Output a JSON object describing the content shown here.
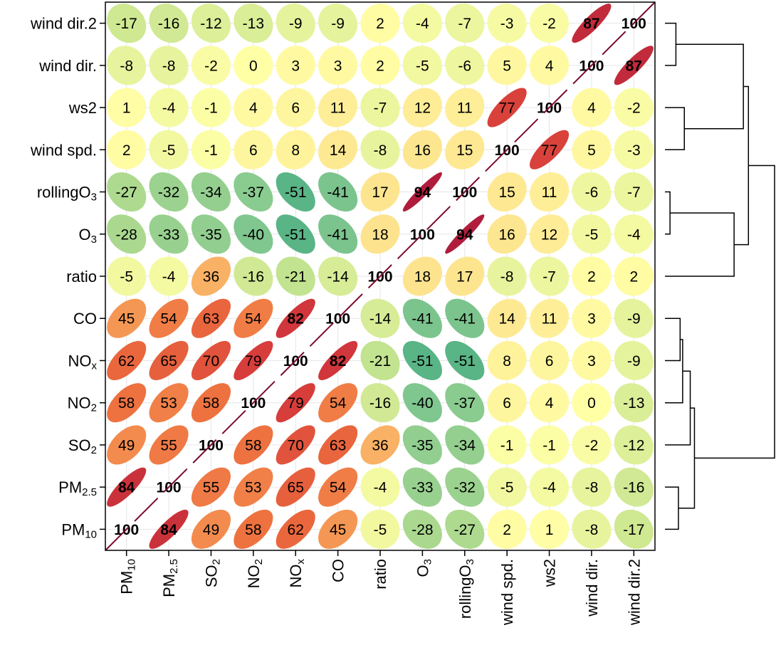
{
  "chart_data": {
    "type": "heatmap",
    "title": "",
    "xlabel": "",
    "ylabel": "",
    "variables": [
      {
        "base": "PM",
        "sub": "10"
      },
      {
        "base": "PM",
        "sub": "2.5"
      },
      {
        "base": "SO",
        "sub": "2"
      },
      {
        "base": "NO",
        "sub": "2"
      },
      {
        "base": "NO",
        "sub": "x"
      },
      {
        "base": "CO",
        "sub": ""
      },
      {
        "base": "ratio",
        "sub": ""
      },
      {
        "base": "O",
        "sub": "3"
      },
      {
        "base": "rollingO",
        "sub": "3"
      },
      {
        "base": "wind spd.",
        "sub": ""
      },
      {
        "base": "ws2",
        "sub": ""
      },
      {
        "base": "wind dir.",
        "sub": ""
      },
      {
        "base": "wind dir.2",
        "sub": ""
      }
    ],
    "matrix": [
      [
        100,
        84,
        49,
        58,
        62,
        45,
        -5,
        -28,
        -27,
        2,
        1,
        -8,
        -17
      ],
      [
        84,
        100,
        55,
        53,
        65,
        54,
        -4,
        -33,
        -32,
        -5,
        -4,
        -8,
        -16
      ],
      [
        49,
        55,
        100,
        58,
        70,
        63,
        36,
        -35,
        -34,
        -1,
        -1,
        -2,
        -12
      ],
      [
        58,
        53,
        58,
        100,
        79,
        54,
        -16,
        -40,
        -37,
        6,
        4,
        0,
        -13
      ],
      [
        62,
        65,
        70,
        79,
        100,
        82,
        -21,
        -51,
        -51,
        8,
        6,
        3,
        -9
      ],
      [
        45,
        54,
        63,
        54,
        82,
        100,
        -14,
        -41,
        -41,
        14,
        11,
        3,
        -9
      ],
      [
        -5,
        -4,
        36,
        -16,
        -21,
        -14,
        100,
        18,
        17,
        -8,
        -7,
        2,
        2
      ],
      [
        -28,
        -33,
        -35,
        -40,
        -51,
        -41,
        18,
        100,
        94,
        16,
        12,
        -5,
        -4
      ],
      [
        -27,
        -32,
        -34,
        -37,
        -51,
        -41,
        17,
        94,
        100,
        15,
        11,
        -6,
        -7
      ],
      [
        2,
        -5,
        -1,
        6,
        8,
        14,
        -8,
        16,
        15,
        100,
        77,
        5,
        -3
      ],
      [
        1,
        -4,
        -1,
        4,
        6,
        11,
        -7,
        12,
        11,
        77,
        100,
        4,
        -2
      ],
      [
        -8,
        -8,
        -2,
        0,
        3,
        3,
        2,
        -5,
        -6,
        5,
        4,
        100,
        87
      ],
      [
        -17,
        -16,
        -12,
        -13,
        -9,
        -9,
        2,
        -4,
        -7,
        -3,
        -2,
        87,
        100
      ]
    ],
    "value_range": [
      -100,
      100
    ],
    "grid": true,
    "legend": "none",
    "diagonal_line_color": "#7a0a2a",
    "colors": {
      "neg_60": "#3aa67f",
      "neg_40": "#7fc68f",
      "neg_20": "#c6e48f",
      "zero": "#ffffa6",
      "pos_20": "#fde08b",
      "pos_40": "#f8a55c",
      "pos_60": "#ec6c3d",
      "pos_80": "#d53a3b",
      "pos_100": "#a0103c"
    },
    "dendrogram": {
      "orientation": "right",
      "merges": [
        {
          "id": "c1",
          "left": "wind dir.",
          "right": "wind dir.2",
          "height": 0.13
        },
        {
          "id": "c2",
          "left": "wind spd.",
          "right": "ws2",
          "height": 0.23
        },
        {
          "id": "c3",
          "left": "O3",
          "right": "rollingO3",
          "height": 0.06
        },
        {
          "id": "c4",
          "left": "ratio",
          "right": "c3",
          "height": 0.82
        },
        {
          "id": "c5",
          "left": "c1",
          "right": "c2",
          "height": 0.93
        },
        {
          "id": "c6",
          "left": "c5",
          "right": "c4",
          "height": 0.99
        },
        {
          "id": "c7",
          "left": "CO",
          "right": "NOx",
          "height": 0.18
        },
        {
          "id": "c8",
          "left": "c7",
          "right": "NO2",
          "height": 0.21
        },
        {
          "id": "c9",
          "left": "c8",
          "right": "SO2",
          "height": 0.3
        },
        {
          "id": "c10",
          "left": "PM2.5",
          "right": "PM10",
          "height": 0.16
        },
        {
          "id": "c11",
          "left": "c9",
          "right": "c10",
          "height": 0.35
        },
        {
          "id": "c12",
          "left": "c6",
          "right": "c11",
          "height": 1.3
        }
      ]
    }
  }
}
